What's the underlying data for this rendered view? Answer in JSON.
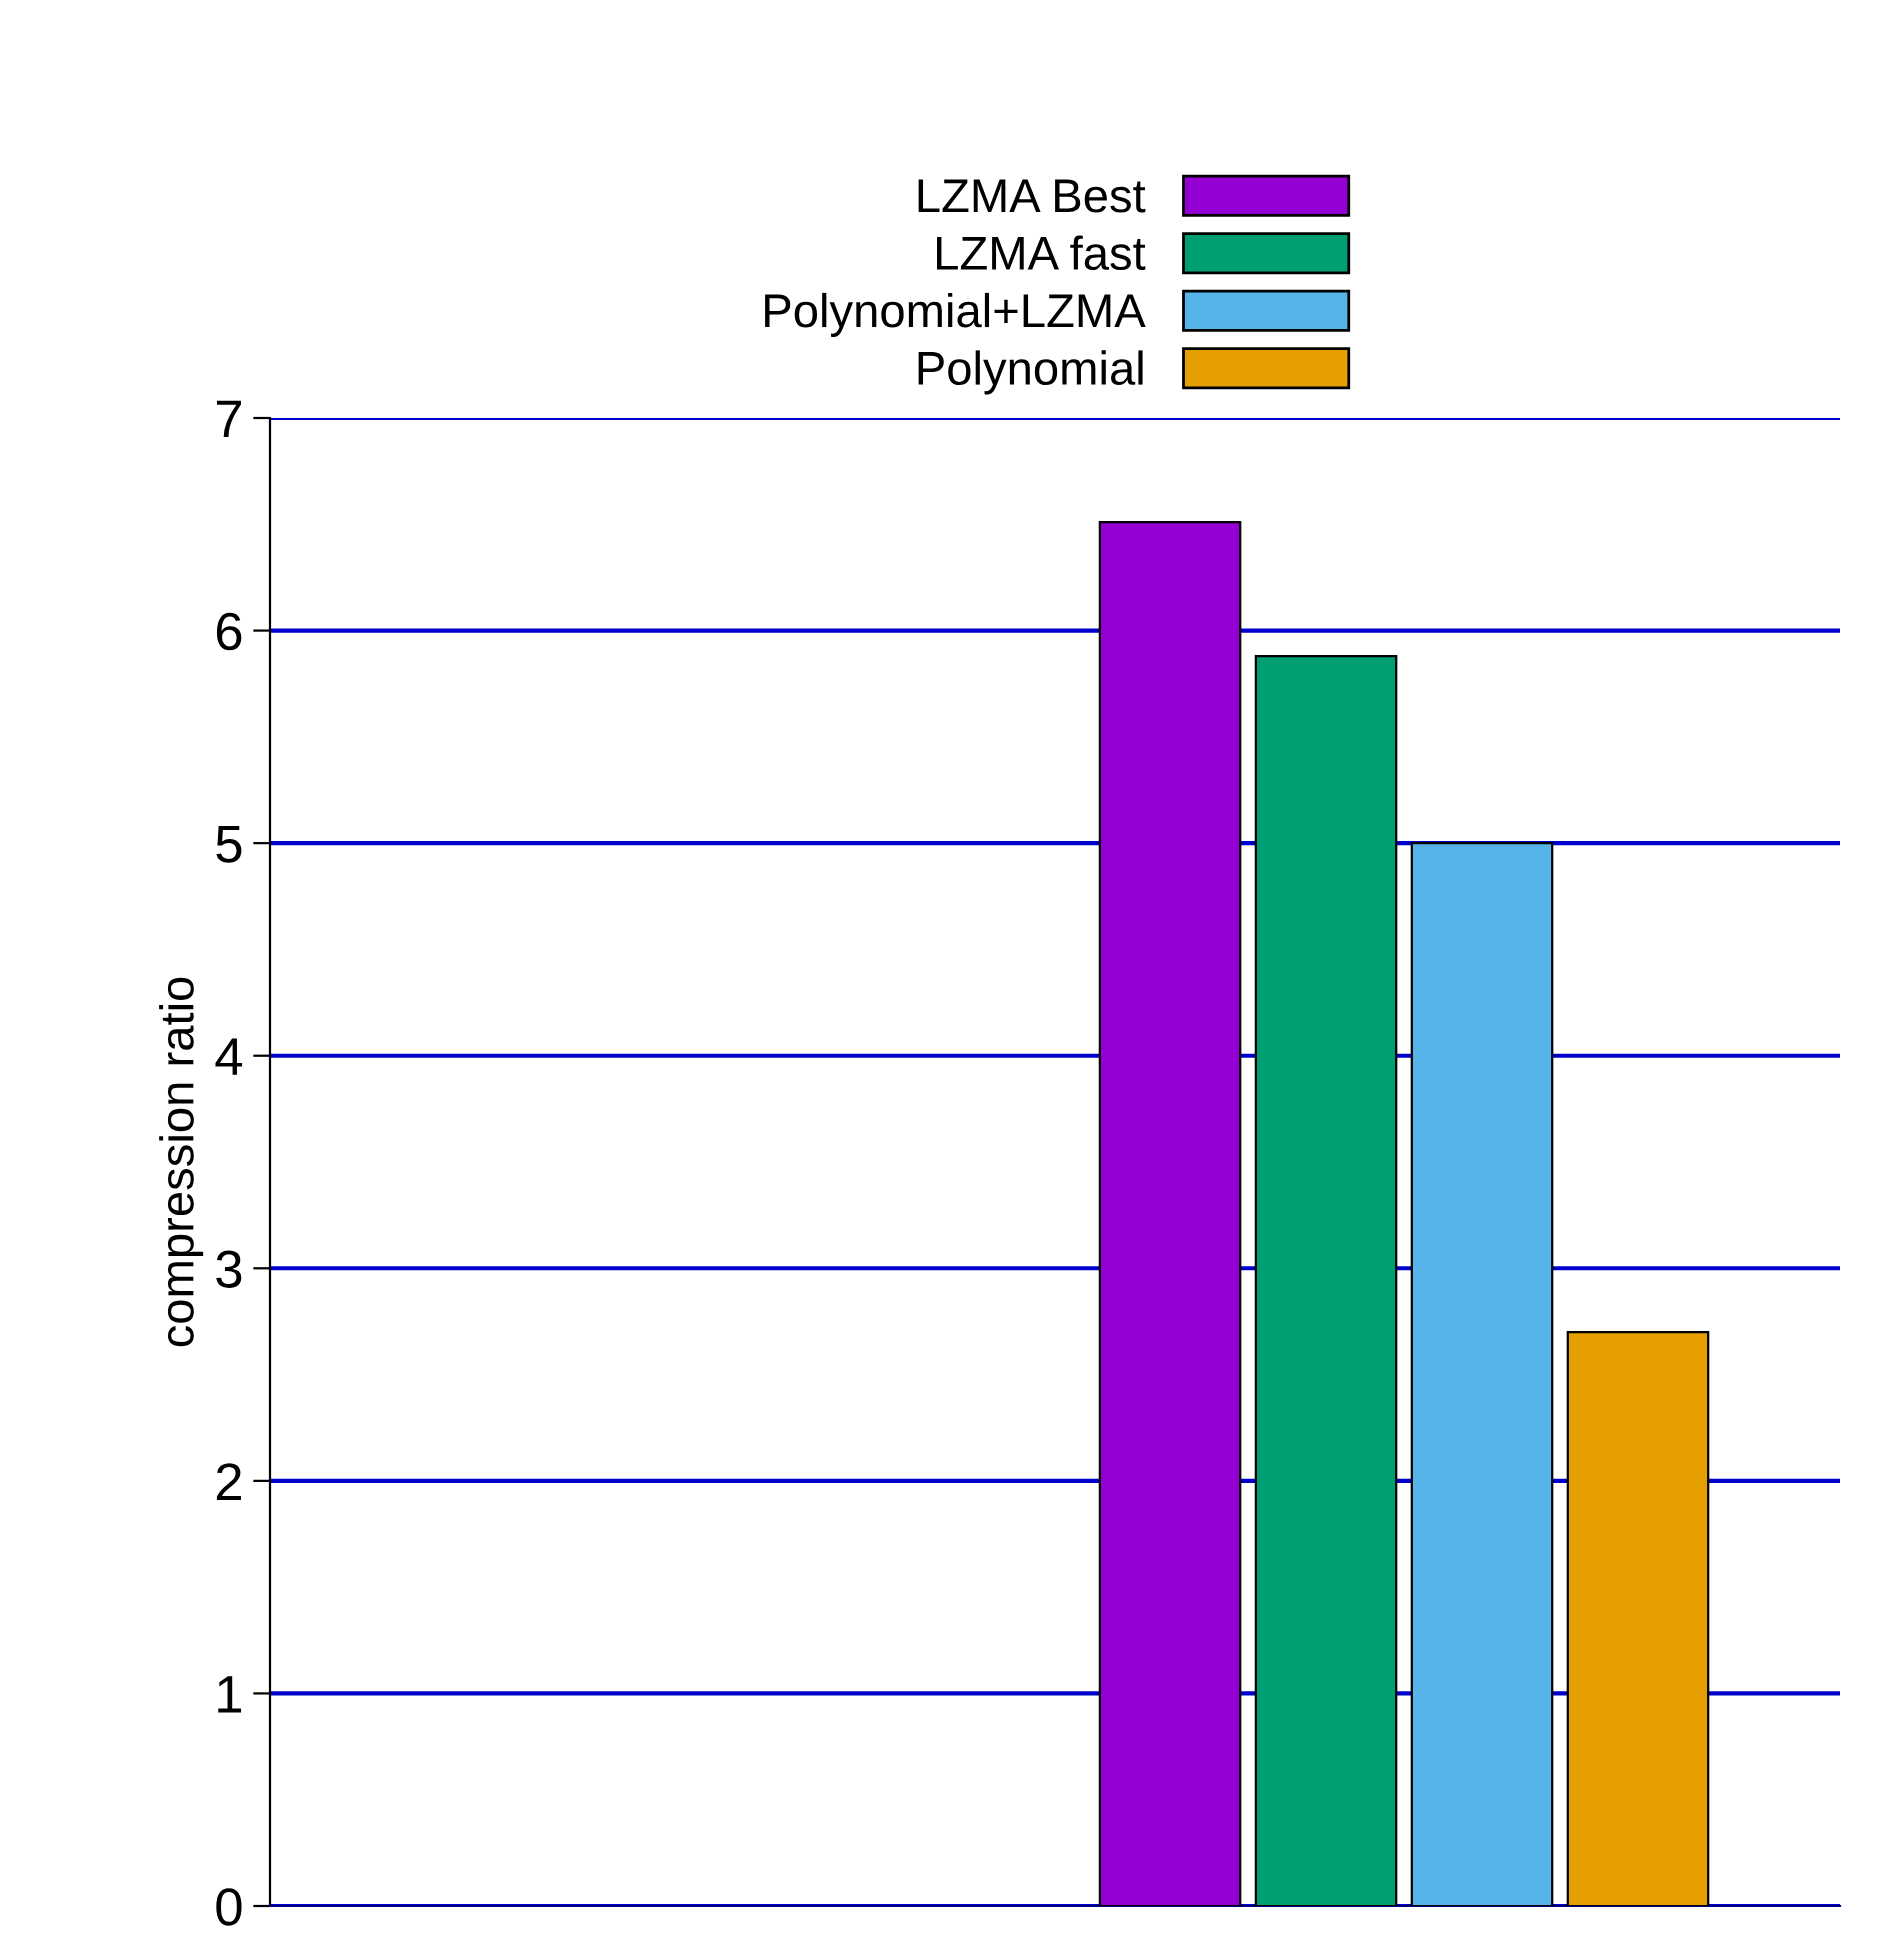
{
  "chart_data": {
    "type": "bar",
    "ylabel": "compression ratio",
    "categories": [
      null
    ],
    "series": [
      {
        "name": "LZMA Best",
        "color": "#9400d3",
        "values": [
          6.51
        ]
      },
      {
        "name": "LZMA fast",
        "color": "#009e73",
        "values": [
          5.88
        ]
      },
      {
        "name": "Polynomial+LZMA",
        "color": "#56b4e9",
        "values": [
          5.0
        ]
      },
      {
        "name": "Polynomial",
        "color": "#e69f00",
        "values": [
          2.7
        ]
      }
    ],
    "ylim": [
      0,
      7
    ],
    "yticks": [
      0,
      1,
      2,
      3,
      4,
      5,
      6,
      7
    ],
    "grid": "y",
    "legend": "top",
    "tick_labels": "y"
  }
}
